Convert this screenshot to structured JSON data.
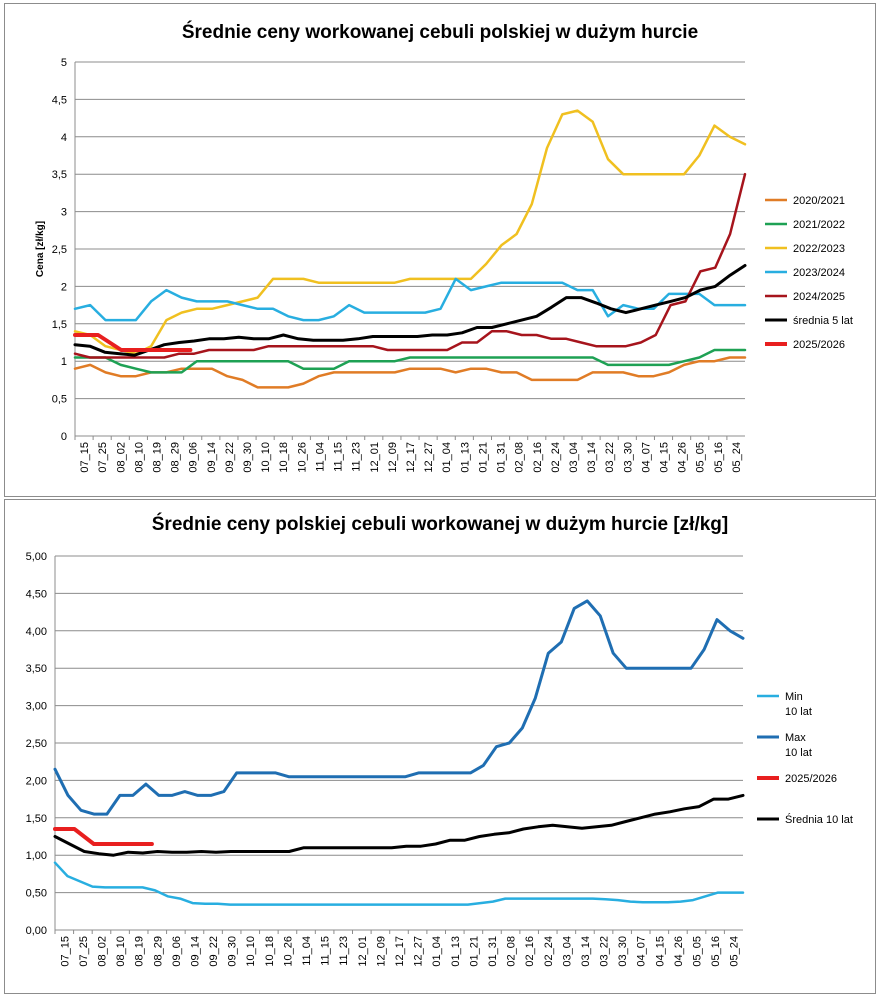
{
  "x_ticks": [
    "07_15",
    "07_25",
    "08_02",
    "08_10",
    "08_19",
    "08_29",
    "09_06",
    "09_14",
    "09_22",
    "09_30",
    "10_10",
    "10_18",
    "10_26",
    "11_04",
    "11_15",
    "11_23",
    "12_01",
    "12_09",
    "12_17",
    "12_27",
    "01_04",
    "01_13",
    "01_21",
    "01_31",
    "02_08",
    "02_16",
    "02_24",
    "03_04",
    "03_14",
    "03_22",
    "03_30",
    "04_07",
    "04_15",
    "04_26",
    "05_05",
    "05_16",
    "05_24"
  ],
  "chart_data": [
    {
      "type": "line",
      "title": "Średnie ceny workowanej cebuli polskiej w dużym hurcie",
      "xlabel": "",
      "ylabel": "Cena [zł/kg]",
      "ylim": [
        0,
        5
      ],
      "y_ticks": [
        "0",
        "0,5",
        "1",
        "1,5",
        "2",
        "2,5",
        "3",
        "3,5",
        "4",
        "4,5",
        "5"
      ],
      "grid": "horizontal",
      "legend_position": "right",
      "series": [
        {
          "name": "2020/2021",
          "color": "#e07c26",
          "width": 2.5,
          "values": [
            0.9,
            0.95,
            0.85,
            0.8,
            0.8,
            0.85,
            0.85,
            0.9,
            0.9,
            0.9,
            0.8,
            0.75,
            0.65,
            0.65,
            0.65,
            0.7,
            0.8,
            0.85,
            0.85,
            0.85,
            0.85,
            0.85,
            0.9,
            0.9,
            0.9,
            0.85,
            0.9,
            0.9,
            0.85,
            0.85,
            0.75,
            0.75,
            0.75,
            0.75,
            0.85,
            0.85,
            0.85,
            0.8,
            0.8,
            0.85,
            0.95,
            1.0,
            1.0,
            1.05,
            1.05
          ]
        },
        {
          "name": "2021/2022",
          "color": "#1ea154",
          "width": 2.5,
          "values": [
            1.05,
            1.05,
            1.05,
            0.95,
            0.9,
            0.85,
            0.85,
            0.85,
            1.0,
            1.0,
            1.0,
            1.0,
            1.0,
            1.0,
            1.0,
            0.9,
            0.9,
            0.9,
            1.0,
            1.0,
            1.0,
            1.0,
            1.05,
            1.05,
            1.05,
            1.05,
            1.05,
            1.05,
            1.05,
            1.05,
            1.05,
            1.05,
            1.05,
            1.05,
            1.05,
            0.95,
            0.95,
            0.95,
            0.95,
            0.95,
            1.0,
            1.05,
            1.15,
            1.15,
            1.15
          ]
        },
        {
          "name": "2022/2023",
          "color": "#f0c020",
          "width": 2.5,
          "values": [
            1.4,
            1.35,
            1.2,
            1.15,
            1.1,
            1.2,
            1.55,
            1.65,
            1.7,
            1.7,
            1.75,
            1.8,
            1.85,
            2.1,
            2.1,
            2.1,
            2.05,
            2.05,
            2.05,
            2.05,
            2.05,
            2.05,
            2.1,
            2.1,
            2.1,
            2.1,
            2.1,
            2.3,
            2.55,
            2.7,
            3.1,
            3.85,
            4.3,
            4.35,
            4.2,
            3.7,
            3.5,
            3.5,
            3.5,
            3.5,
            3.5,
            3.75,
            4.15,
            4.0,
            3.9
          ]
        },
        {
          "name": "2023/2024",
          "color": "#28aee0",
          "width": 2.5,
          "values": [
            1.7,
            1.75,
            1.55,
            1.55,
            1.55,
            1.8,
            1.95,
            1.85,
            1.8,
            1.8,
            1.8,
            1.75,
            1.7,
            1.7,
            1.6,
            1.55,
            1.55,
            1.6,
            1.75,
            1.65,
            1.65,
            1.65,
            1.65,
            1.65,
            1.7,
            2.1,
            1.95,
            2.0,
            2.05,
            2.05,
            2.05,
            2.05,
            2.05,
            1.95,
            1.95,
            1.6,
            1.75,
            1.7,
            1.7,
            1.9,
            1.9,
            1.9,
            1.75,
            1.75,
            1.75
          ]
        },
        {
          "name": "2024/2025",
          "color": "#a6141c",
          "width": 2.5,
          "values": [
            1.1,
            1.05,
            1.05,
            1.05,
            1.05,
            1.05,
            1.05,
            1.1,
            1.1,
            1.15,
            1.15,
            1.15,
            1.15,
            1.2,
            1.2,
            1.2,
            1.2,
            1.2,
            1.2,
            1.2,
            1.2,
            1.15,
            1.15,
            1.15,
            1.15,
            1.15,
            1.25,
            1.25,
            1.4,
            1.4,
            1.35,
            1.35,
            1.3,
            1.3,
            1.25,
            1.2,
            1.2,
            1.2,
            1.25,
            1.35,
            1.75,
            1.8,
            2.2,
            2.25,
            2.7,
            3.5
          ]
        },
        {
          "name": "średnia 5 lat",
          "color": "#000000",
          "width": 3,
          "values": [
            1.22,
            1.2,
            1.12,
            1.1,
            1.08,
            1.15,
            1.22,
            1.25,
            1.27,
            1.3,
            1.3,
            1.32,
            1.3,
            1.3,
            1.35,
            1.3,
            1.28,
            1.28,
            1.28,
            1.3,
            1.33,
            1.33,
            1.33,
            1.33,
            1.35,
            1.35,
            1.38,
            1.45,
            1.45,
            1.5,
            1.55,
            1.6,
            1.72,
            1.85,
            1.85,
            1.78,
            1.7,
            1.65,
            1.7,
            1.75,
            1.8,
            1.85,
            1.95,
            2.0,
            2.15,
            2.28
          ]
        },
        {
          "name": "2025/2026",
          "color": "#e81f1f",
          "width": 4,
          "values": [
            1.35,
            1.35,
            1.15,
            1.15,
            1.15,
            1.15
          ]
        }
      ]
    },
    {
      "type": "line",
      "title": "Średnie ceny polskiej cebuli workowanej w dużym hurcie [zł/kg]",
      "xlabel": "",
      "ylabel": "",
      "ylim": [
        0,
        5
      ],
      "y_ticks": [
        "0,00",
        "0,50",
        "1,00",
        "1,50",
        "2,00",
        "2,50",
        "3,00",
        "3,50",
        "4,00",
        "4,50",
        "5,00"
      ],
      "grid": "horizontal",
      "legend_position": "right",
      "series": [
        {
          "name": "Min 10 lat",
          "label_lines": [
            "Min",
            "10 lat"
          ],
          "color": "#28aee0",
          "width": 2.5,
          "values": [
            0.9,
            0.72,
            0.65,
            0.58,
            0.57,
            0.57,
            0.57,
            0.57,
            0.53,
            0.45,
            0.42,
            0.36,
            0.35,
            0.35,
            0.34,
            0.34,
            0.34,
            0.34,
            0.34,
            0.34,
            0.34,
            0.34,
            0.34,
            0.34,
            0.34,
            0.34,
            0.34,
            0.34,
            0.34,
            0.34,
            0.34,
            0.34,
            0.34,
            0.34,
            0.36,
            0.38,
            0.42,
            0.42,
            0.42,
            0.42,
            0.42,
            0.42,
            0.42,
            0.42,
            0.41,
            0.4,
            0.38,
            0.37,
            0.37,
            0.37,
            0.38,
            0.4,
            0.45,
            0.5,
            0.5,
            0.5
          ]
        },
        {
          "name": "Max 10 lat",
          "label_lines": [
            "Max",
            "10 lat"
          ],
          "color": "#1f6eb2",
          "width": 3,
          "values": [
            2.15,
            1.8,
            1.6,
            1.55,
            1.55,
            1.8,
            1.8,
            1.95,
            1.8,
            1.8,
            1.85,
            1.8,
            1.8,
            1.85,
            2.1,
            2.1,
            2.1,
            2.1,
            2.05,
            2.05,
            2.05,
            2.05,
            2.05,
            2.05,
            2.05,
            2.05,
            2.05,
            2.05,
            2.1,
            2.1,
            2.1,
            2.1,
            2.1,
            2.2,
            2.45,
            2.5,
            2.7,
            3.1,
            3.7,
            3.85,
            4.3,
            4.4,
            4.2,
            3.7,
            3.5,
            3.5,
            3.5,
            3.5,
            3.5,
            3.5,
            3.75,
            4.15,
            4.0,
            3.9
          ]
        },
        {
          "name": "2025/2026",
          "label_lines": [
            "2025/2026"
          ],
          "color": "#e81f1f",
          "width": 4,
          "values": [
            1.35,
            1.35,
            1.15,
            1.15,
            1.15,
            1.15
          ]
        },
        {
          "name": "Średnia 10 lat",
          "label_lines": [
            "Średnia 10 lat"
          ],
          "color": "#000000",
          "width": 3,
          "values": [
            1.25,
            1.15,
            1.05,
            1.02,
            1.0,
            1.04,
            1.03,
            1.05,
            1.04,
            1.04,
            1.05,
            1.04,
            1.05,
            1.05,
            1.05,
            1.05,
            1.05,
            1.1,
            1.1,
            1.1,
            1.1,
            1.1,
            1.1,
            1.1,
            1.12,
            1.12,
            1.15,
            1.2,
            1.2,
            1.25,
            1.28,
            1.3,
            1.35,
            1.38,
            1.4,
            1.38,
            1.36,
            1.38,
            1.4,
            1.45,
            1.5,
            1.55,
            1.58,
            1.62,
            1.65,
            1.75,
            1.75,
            1.8
          ]
        }
      ]
    }
  ]
}
